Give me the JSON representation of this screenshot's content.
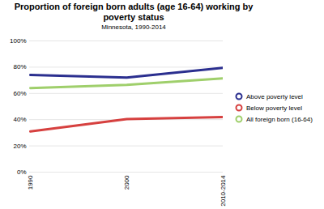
{
  "chart_data": {
    "type": "line",
    "title": "Proportion of foreign born adults (age 16-64) working by poverty status",
    "subtitle": "Minnesota, 1990-2014",
    "categories": [
      "1990",
      "2000",
      "2010-2014"
    ],
    "series": [
      {
        "name": "Above poverty level",
        "color": "#2b2f8f",
        "values": [
          74,
          72,
          79.5
        ]
      },
      {
        "name": "Below poverty level",
        "color": "#d6403f",
        "values": [
          31,
          40.5,
          42
        ]
      },
      {
        "name": "All foreign born (16-64)",
        "color": "#9fcf6b",
        "values": [
          64,
          66.5,
          71.5
        ]
      }
    ],
    "ylim": [
      0,
      100
    ],
    "yticks": [
      {
        "value": 0,
        "label": "0%"
      },
      {
        "value": 20,
        "label": "20%"
      },
      {
        "value": 40,
        "label": "40%"
      },
      {
        "value": 60,
        "label": "60%"
      },
      {
        "value": 80,
        "label": "80%"
      },
      {
        "value": 100,
        "label": "100%"
      }
    ],
    "grid": true,
    "legend": "right"
  }
}
